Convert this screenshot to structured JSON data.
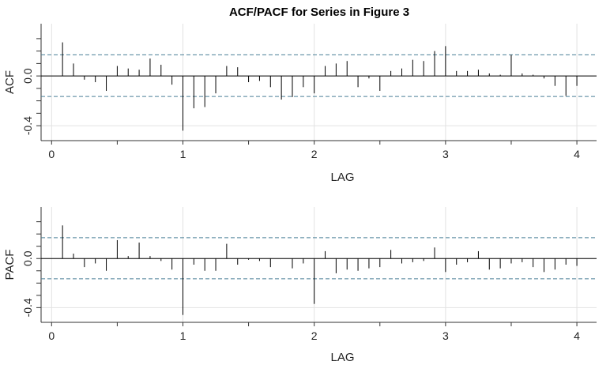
{
  "chart_data": [
    {
      "type": "bar",
      "title": "ACF/PACF for Series in Figure 3",
      "xlabel": "LAG",
      "ylabel": "ACF",
      "xlim": [
        -0.08,
        4.15
      ],
      "ylim": [
        -0.52,
        0.42
      ],
      "x_ticks": [
        0,
        1,
        2,
        3,
        4
      ],
      "y_ticks": [
        -0.4,
        0.0
      ],
      "y_tick_labels": [
        "-0.4",
        "0.0"
      ],
      "y_minor_ticks": [
        -0.3,
        -0.2,
        -0.1,
        0.1,
        0.2,
        0.3
      ],
      "x_minor_ticks": [
        0.5,
        1.5,
        2.5,
        3.5
      ],
      "grid": true,
      "confidence_band": [
        -0.165,
        0.17
      ],
      "x": [
        0.0833,
        0.1667,
        0.25,
        0.3333,
        0.4167,
        0.5,
        0.5833,
        0.6667,
        0.75,
        0.8333,
        0.9167,
        1.0,
        1.0833,
        1.1667,
        1.25,
        1.3333,
        1.4167,
        1.5,
        1.5833,
        1.6667,
        1.75,
        1.8333,
        1.9167,
        2.0,
        2.0833,
        2.1667,
        2.25,
        2.3333,
        2.4167,
        2.5,
        2.5833,
        2.6667,
        2.75,
        2.8333,
        2.9167,
        3.0,
        3.0833,
        3.1667,
        3.25,
        3.3333,
        3.4167,
        3.5,
        3.5833,
        3.6667,
        3.75,
        3.8333,
        3.9167,
        4.0
      ],
      "values": [
        0.27,
        0.1,
        -0.03,
        -0.05,
        -0.12,
        0.08,
        0.06,
        0.05,
        0.14,
        0.09,
        -0.07,
        -0.44,
        -0.26,
        -0.25,
        -0.14,
        0.08,
        0.07,
        -0.05,
        -0.04,
        -0.09,
        -0.19,
        -0.17,
        -0.09,
        -0.14,
        0.08,
        0.1,
        0.12,
        -0.09,
        -0.02,
        -0.12,
        0.04,
        0.06,
        0.13,
        0.12,
        0.2,
        0.24,
        0.04,
        0.04,
        0.05,
        0.02,
        0.01,
        0.17,
        0.02,
        0.01,
        -0.02,
        -0.08,
        -0.16,
        -0.08
      ]
    },
    {
      "type": "bar",
      "title": "",
      "xlabel": "LAG",
      "ylabel": "PACF",
      "xlim": [
        -0.08,
        4.15
      ],
      "ylim": [
        -0.52,
        0.42
      ],
      "x_ticks": [
        0,
        1,
        2,
        3,
        4
      ],
      "y_ticks": [
        -0.4,
        0.0
      ],
      "y_tick_labels": [
        "-0.4",
        "0.0"
      ],
      "y_minor_ticks": [
        -0.3,
        -0.2,
        -0.1,
        0.1,
        0.2,
        0.3
      ],
      "x_minor_ticks": [
        0.5,
        1.5,
        2.5,
        3.5
      ],
      "grid": true,
      "confidence_band": [
        -0.165,
        0.17
      ],
      "x": [
        0.0833,
        0.1667,
        0.25,
        0.3333,
        0.4167,
        0.5,
        0.5833,
        0.6667,
        0.75,
        0.8333,
        0.9167,
        1.0,
        1.0833,
        1.1667,
        1.25,
        1.3333,
        1.4167,
        1.5,
        1.5833,
        1.6667,
        1.75,
        1.8333,
        1.9167,
        2.0,
        2.0833,
        2.1667,
        2.25,
        2.3333,
        2.4167,
        2.5,
        2.5833,
        2.6667,
        2.75,
        2.8333,
        2.9167,
        3.0,
        3.0833,
        3.1667,
        3.25,
        3.3333,
        3.4167,
        3.5,
        3.5833,
        3.6667,
        3.75,
        3.8333,
        3.9167,
        4.0
      ],
      "values": [
        0.27,
        0.04,
        -0.07,
        -0.04,
        -0.1,
        0.15,
        0.02,
        0.13,
        0.02,
        -0.02,
        -0.09,
        -0.46,
        -0.05,
        -0.1,
        -0.1,
        0.12,
        -0.05,
        -0.01,
        -0.02,
        -0.07,
        0.0,
        -0.08,
        -0.04,
        -0.37,
        0.06,
        -0.12,
        -0.09,
        -0.1,
        -0.08,
        -0.07,
        0.07,
        -0.04,
        -0.03,
        -0.02,
        0.09,
        -0.11,
        -0.05,
        -0.03,
        0.06,
        -0.09,
        -0.08,
        -0.04,
        -0.03,
        -0.07,
        -0.11,
        -0.09,
        -0.05,
        -0.06
      ]
    }
  ]
}
